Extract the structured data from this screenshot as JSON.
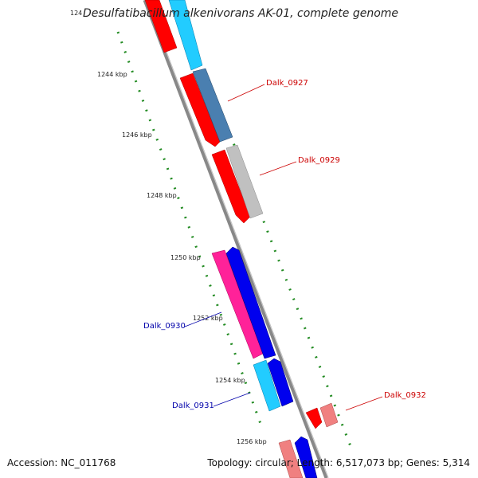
{
  "header": {
    "title": "Desulfatibacillum alkenivorans AK-01, complete genome",
    "title_tick": "124"
  },
  "footer": {
    "accession": "Accession: NC_011768",
    "topology": "Topology: circular; Length: 6,517,073 bp; Genes: 5,314"
  },
  "ticks": [
    "1244 kbp",
    "1246 kbp",
    "1248 kbp",
    "1250 kbp",
    "1252 kbp",
    "1254 kbp",
    "1256 kbp"
  ],
  "gene_labels": {
    "dalk_0927": {
      "text": "Dalk_0927",
      "color": "#cc0000"
    },
    "dalk_0929": {
      "text": "Dalk_0929",
      "color": "#cc0000"
    },
    "dalk_0930": {
      "text": "Dalk_0930",
      "color": "#0000aa"
    },
    "dalk_0931": {
      "text": "Dalk_0931",
      "color": "#0000aa"
    },
    "dalk_0932": {
      "text": "Dalk_0932",
      "color": "#cc0000"
    }
  },
  "colors": {
    "red": "#ff0000",
    "cyan": "#22ccff",
    "steel": "#4a7fb0",
    "grey": "#c0c0c0",
    "magenta": "#ff2299",
    "blue": "#0000ee",
    "salmon": "#f08080",
    "dot_green": "#228b22"
  }
}
